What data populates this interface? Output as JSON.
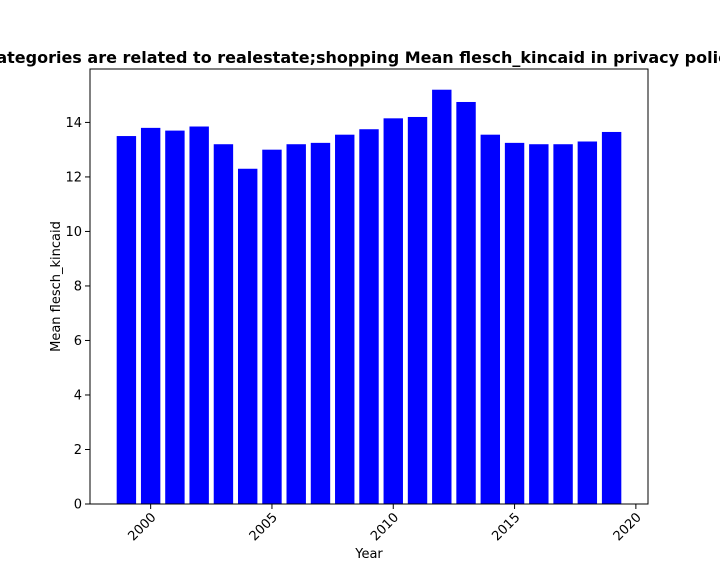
{
  "chart_data": {
    "type": "bar",
    "title": "Categories are related to realestate;shopping Mean flesch_kincaid in privacy policies",
    "xlabel": "Year",
    "ylabel": "Mean flesch_kincaid",
    "x": [
      1999,
      2000,
      2001,
      2002,
      2003,
      2004,
      2005,
      2006,
      2007,
      2008,
      2009,
      2010,
      2011,
      2012,
      2013,
      2014,
      2015,
      2016,
      2017,
      2018,
      2019
    ],
    "values": [
      13.5,
      13.8,
      13.7,
      13.85,
      13.2,
      12.3,
      13.0,
      13.2,
      13.25,
      13.55,
      13.75,
      14.15,
      14.2,
      15.2,
      14.75,
      13.55,
      13.25,
      13.2,
      13.2,
      13.3,
      13.65
    ],
    "xlim": [
      1997.5,
      2020.5
    ],
    "ylim": [
      0,
      15.96
    ],
    "xticks": [
      2000,
      2005,
      2010,
      2015,
      2020
    ],
    "yticks": [
      0,
      2,
      4,
      6,
      8,
      10,
      12,
      14
    ],
    "bar_color": "#0000ff",
    "grid": false,
    "legend": "none"
  }
}
